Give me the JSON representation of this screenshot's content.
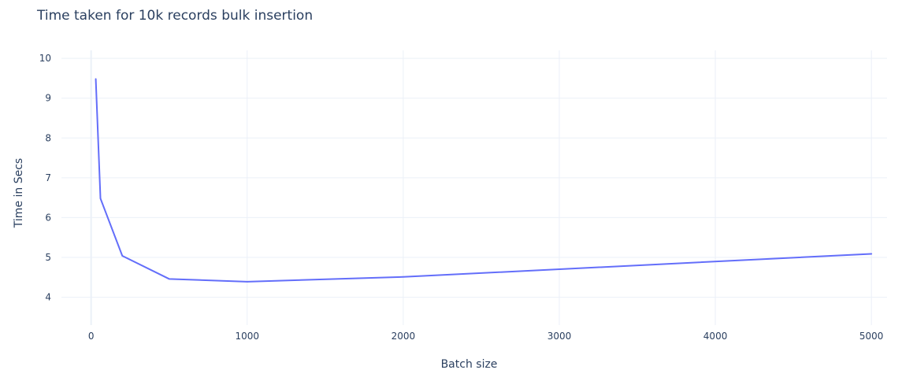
{
  "chart_data": {
    "type": "line",
    "title": "Time taken for 10k records bulk insertion",
    "xlabel": "Batch size",
    "ylabel": "Time in Secs",
    "xlim": [
      -190,
      5100
    ],
    "ylim": [
      3.3,
      10.2
    ],
    "x_ticks": [
      0,
      1000,
      2000,
      3000,
      4000,
      5000
    ],
    "y_ticks": [
      4,
      5,
      6,
      7,
      8,
      9,
      10
    ],
    "grid": true,
    "legend": "none",
    "series": [
      {
        "color": "#636efa",
        "x": [
          30,
          60,
          200,
          500,
          1000,
          2000,
          5000
        ],
        "y": [
          9.48,
          6.48,
          5.04,
          4.46,
          4.39,
          4.51,
          5.09
        ]
      }
    ]
  }
}
